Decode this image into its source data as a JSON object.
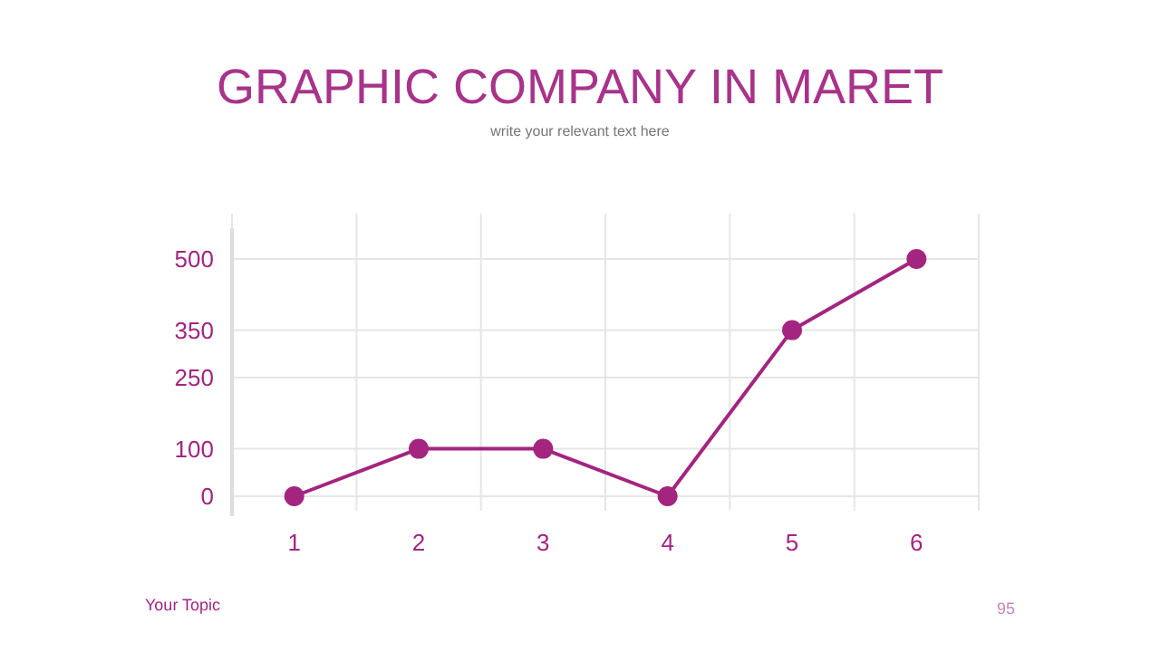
{
  "chart_data": {
    "type": "line",
    "title": "GRAPHIC COMPANY IN MARET",
    "subtitle": "write your relevant text here",
    "categories": [
      "1",
      "2",
      "3",
      "4",
      "5",
      "6"
    ],
    "series": [
      {
        "color": "#a3257f",
        "values": [
          0,
          100,
          100,
          0,
          350,
          500
        ]
      }
    ],
    "ylim": [
      0,
      500
    ],
    "yticks": [
      0,
      100,
      250,
      350,
      500
    ],
    "grid": true,
    "marker": "circle",
    "line_style": "solid",
    "annotations": [
      "Your Topic",
      "95"
    ]
  }
}
